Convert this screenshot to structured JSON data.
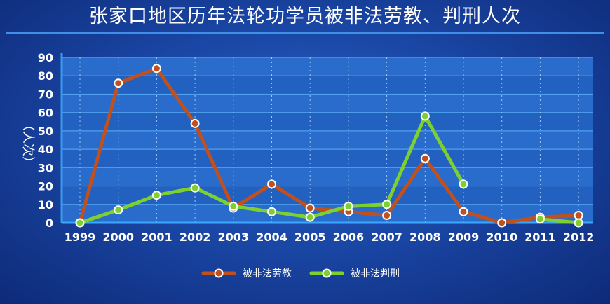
{
  "chart_data": {
    "type": "line",
    "title": "张家口地区历年法轮功学员被非法劳教、判刑人次",
    "ylabel": "（人次）",
    "xlabel": "",
    "x": [
      "1999",
      "2000",
      "2001",
      "2002",
      "2003",
      "2004",
      "2005",
      "2006",
      "2007",
      "2008",
      "2009",
      "2010",
      "2011",
      "2012"
    ],
    "yticks": [
      0,
      10,
      20,
      30,
      40,
      50,
      60,
      70,
      80,
      90
    ],
    "ylim": [
      0,
      90
    ],
    "grid": true,
    "legend_position": "bottom-center",
    "series": [
      {
        "name": "被非法劳教",
        "color": "#c0501e",
        "values": [
          0,
          76,
          84,
          54,
          8,
          21,
          8,
          6,
          4,
          35,
          6,
          0,
          3,
          4
        ]
      },
      {
        "name": "被非法判刑",
        "color": "#7ed030",
        "values": [
          0,
          7,
          15,
          19,
          9,
          6,
          3,
          9,
          10,
          58,
          21,
          null,
          2,
          0
        ]
      }
    ]
  }
}
